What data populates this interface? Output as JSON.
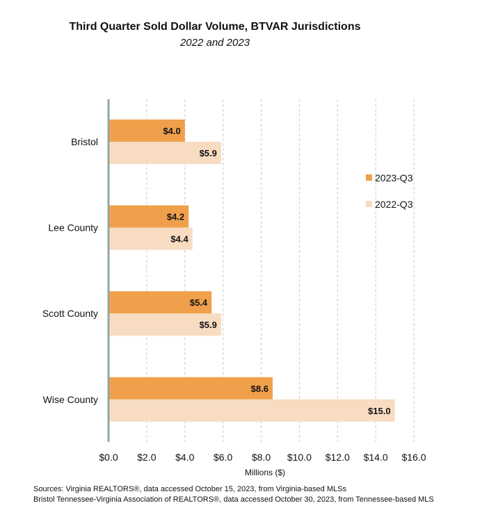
{
  "chart_data": {
    "type": "bar",
    "orientation": "horizontal",
    "title": "Third Quarter Sold Dollar Volume, BTVAR Jurisdictions",
    "subtitle": "2022 and 2023",
    "xlabel": "Millions ($)",
    "ylabel": "",
    "xlim": [
      0,
      16
    ],
    "ticks": [
      "$0.0",
      "$2.0",
      "$4.0",
      "$6.0",
      "$8.0",
      "$10.0",
      "$12.0",
      "$14.0",
      "$16.0"
    ],
    "categories": [
      "Bristol",
      "Lee County",
      "Scott County",
      "Wise County"
    ],
    "series": [
      {
        "name": "2023-Q3",
        "color": "#f0a04b",
        "values": [
          4.0,
          4.2,
          5.4,
          8.6
        ],
        "labels": [
          "$4.0",
          "$4.2",
          "$5.4",
          "$8.6"
        ]
      },
      {
        "name": "2022-Q3",
        "color": "#f8dcc2",
        "values": [
          5.9,
          4.4,
          5.9,
          15.0
        ],
        "labels": [
          "$5.9",
          "$4.4",
          "$5.9",
          "$15.0"
        ]
      }
    ],
    "grid": "vertical-dashed",
    "legend": "right"
  },
  "sources": [
    "Sources: Virginia REALTORS®, data accessed October 15, 2023, from Virginia-based MLSs",
    "Bristol Tennessee-Virginia Association of REALTORS®, data accessed October 30, 2023, from Tennessee-based MLS"
  ]
}
